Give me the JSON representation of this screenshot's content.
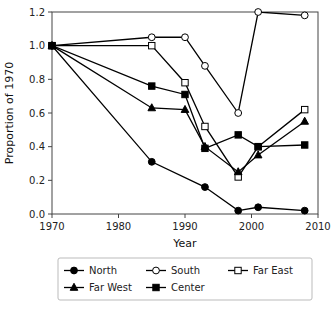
{
  "chart_data": {
    "type": "line",
    "xlabel": "Year",
    "ylabel": "Proportion of 1970",
    "xlim": [
      1970,
      2010
    ],
    "ylim": [
      0,
      1.2
    ],
    "xticks": [
      1970,
      1980,
      1990,
      2000,
      2010
    ],
    "yticks": [
      {
        "value": 0,
        "label": "0.0"
      },
      0.2,
      0.4,
      0.6,
      0.8,
      {
        "value": 1.0,
        "label": "1.0"
      },
      1.2
    ],
    "grid": false,
    "legend": "bottom",
    "series": [
      {
        "name": "North",
        "color": "black",
        "marker": "circle",
        "x": [
          1970,
          1985,
          1993,
          1998,
          2001,
          2008
        ],
        "values": [
          1.0,
          0.31,
          0.16,
          0.02,
          0.04,
          0.02
        ]
      },
      {
        "name": "South",
        "color": "black",
        "marker": "circle-open",
        "x": [
          1970,
          1985,
          1990,
          1993,
          1998,
          2001,
          2008
        ],
        "values": [
          1.0,
          1.05,
          1.05,
          0.88,
          0.6,
          1.2,
          1.18
        ]
      },
      {
        "name": "Far East",
        "color": "black",
        "marker": "square-open",
        "x": [
          1970,
          1985,
          1990,
          1993,
          1998,
          2001,
          2008
        ],
        "values": [
          1.0,
          1.0,
          0.78,
          0.52,
          0.22,
          0.4,
          0.62
        ]
      },
      {
        "name": "Far West",
        "color": "black",
        "marker": "triangle",
        "x": [
          1970,
          1985,
          1990,
          1993,
          1998,
          2001,
          2008
        ],
        "values": [
          1.0,
          0.63,
          0.62,
          0.4,
          0.25,
          0.35,
          0.55
        ]
      },
      {
        "name": "Center",
        "color": "black",
        "marker": "square",
        "x": [
          1970,
          1985,
          1990,
          1993,
          1998,
          2001,
          2008
        ],
        "values": [
          1.0,
          0.76,
          0.71,
          0.39,
          0.47,
          0.4,
          0.41
        ]
      }
    ]
  }
}
